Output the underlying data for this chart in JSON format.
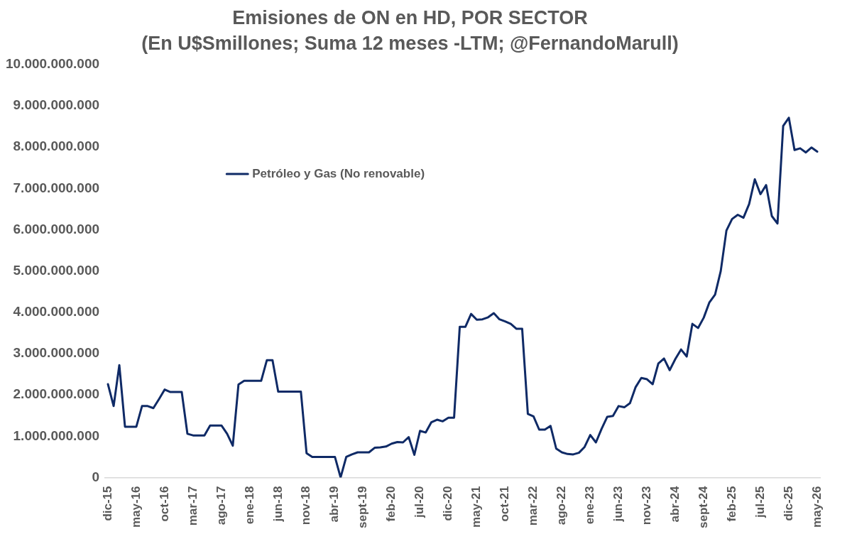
{
  "chart_data": {
    "type": "line",
    "title": "Emisiones de ON en HD, POR SECTOR",
    "subtitle": "(En U$Smillones; Suma 12 meses -LTM; @FernandoMarull)",
    "categories": [
      "dic-15",
      null,
      null,
      null,
      null,
      "may-16",
      null,
      null,
      null,
      null,
      "oct-16",
      null,
      null,
      null,
      null,
      "mar-17",
      null,
      null,
      null,
      null,
      "ago-17",
      null,
      null,
      null,
      null,
      "ene-18",
      null,
      null,
      null,
      null,
      "jun-18",
      null,
      null,
      null,
      null,
      "nov-18",
      null,
      null,
      null,
      null,
      "abr-19",
      null,
      null,
      null,
      null,
      "sept-19",
      null,
      null,
      null,
      null,
      "feb-20",
      null,
      null,
      null,
      null,
      "jul-20",
      null,
      null,
      null,
      null,
      "dic-20",
      null,
      null,
      null,
      null,
      "may-21",
      null,
      null,
      null,
      null,
      "oct-21",
      null,
      null,
      null,
      null,
      "mar-22",
      null,
      null,
      null,
      null,
      "ago-22",
      null,
      null,
      null,
      null,
      "ene-23",
      null,
      null,
      null,
      null,
      "jun-23",
      null,
      null,
      null,
      null,
      "nov-23",
      null,
      null,
      null,
      null,
      "abr-24",
      null,
      null,
      null,
      null,
      "sept-24",
      null,
      null,
      null,
      null,
      "feb-25",
      null,
      null,
      null,
      null,
      "jul-25",
      null,
      null,
      null,
      null,
      "dic-25",
      null,
      null,
      null,
      null,
      "may-26"
    ],
    "series": [
      {
        "name": "Petróleo y Gas (No renovable)",
        "color": "#0f2a66",
        "values": [
          2260000000,
          1730000000,
          2720000000,
          1230000000,
          1230000000,
          1230000000,
          1730000000,
          1730000000,
          1680000000,
          1900000000,
          2130000000,
          2070000000,
          2070000000,
          2070000000,
          1060000000,
          1020000000,
          1020000000,
          1020000000,
          1260000000,
          1260000000,
          1260000000,
          1060000000,
          770000000,
          2250000000,
          2340000000,
          2340000000,
          2340000000,
          2340000000,
          2840000000,
          2840000000,
          2080000000,
          2080000000,
          2080000000,
          2080000000,
          2080000000,
          590000000,
          500000000,
          500000000,
          500000000,
          500000000,
          500000000,
          0,
          500000000,
          560000000,
          610000000,
          610000000,
          610000000,
          720000000,
          730000000,
          750000000,
          820000000,
          860000000,
          850000000,
          980000000,
          550000000,
          1130000000,
          1090000000,
          1340000000,
          1400000000,
          1360000000,
          1450000000,
          1450000000,
          3650000000,
          3650000000,
          3960000000,
          3820000000,
          3830000000,
          3880000000,
          3980000000,
          3830000000,
          3780000000,
          3720000000,
          3600000000,
          3600000000,
          1540000000,
          1480000000,
          1160000000,
          1160000000,
          1250000000,
          700000000,
          610000000,
          570000000,
          560000000,
          600000000,
          740000000,
          1030000000,
          850000000,
          1180000000,
          1470000000,
          1490000000,
          1730000000,
          1700000000,
          1800000000,
          2190000000,
          2410000000,
          2380000000,
          2260000000,
          2760000000,
          2880000000,
          2600000000,
          2870000000,
          3100000000,
          2930000000,
          3720000000,
          3620000000,
          3870000000,
          4240000000,
          4430000000,
          5000000000,
          5980000000,
          6260000000,
          6360000000,
          6290000000,
          6620000000,
          7220000000,
          6860000000,
          7080000000,
          6330000000,
          6150000000,
          8510000000,
          8710000000,
          7930000000,
          7970000000,
          7870000000,
          7990000000,
          7890000000
        ]
      }
    ],
    "ylim": [
      0,
      10000000000
    ],
    "yticks": [
      {
        "value": 0,
        "label": "0"
      },
      {
        "value": 1000000000,
        "label": "1.000.000.000"
      },
      {
        "value": 2000000000,
        "label": "2.000.000.000"
      },
      {
        "value": 3000000000,
        "label": "3.000.000.000"
      },
      {
        "value": 4000000000,
        "label": "4.000.000.000"
      },
      {
        "value": 5000000000,
        "label": "5.000.000.000"
      },
      {
        "value": 6000000000,
        "label": "6.000.000.000"
      },
      {
        "value": 7000000000,
        "label": "7.000.000.000"
      },
      {
        "value": 8000000000,
        "label": "8.000.000.000"
      },
      {
        "value": 9000000000,
        "label": "9.000.000.000"
      },
      {
        "value": 10000000000,
        "label": "10.000.000.000"
      }
    ],
    "grid": false,
    "legend": "top left",
    "marker": "none",
    "line_style": "solid"
  }
}
